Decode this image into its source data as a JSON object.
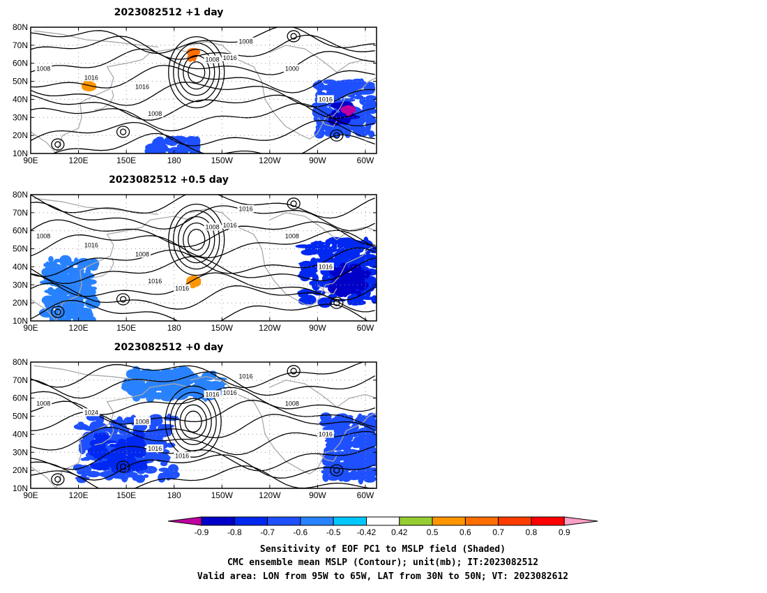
{
  "chart_data": [
    {
      "type": "heatmap",
      "title": "2023082512 +1 day",
      "xlabels": [
        "90E",
        "120E",
        "150E",
        "180",
        "150W",
        "120W",
        "90W",
        "60W"
      ],
      "ylabels": [
        "10N",
        "20N",
        "30N",
        "40N",
        "50N",
        "60N",
        "70N",
        "80N"
      ],
      "xlim_lon_east": [
        90,
        307
      ],
      "ylim_lat": [
        10,
        80
      ],
      "contour_labels": [
        "1016",
        "1016",
        "1008",
        "1000",
        "1008",
        "1016",
        "1008",
        "1016",
        "1008"
      ],
      "shaded_regions": [
        {
          "lon": [
            270,
            305
          ],
          "lat": [
            20,
            50
          ],
          "value": -0.6
        },
        {
          "lon": [
            280,
            292
          ],
          "lat": [
            28,
            38
          ],
          "value": -0.8
        },
        {
          "lon": [
            288,
            291
          ],
          "lat": [
            32,
            35
          ],
          "value": -0.9
        },
        {
          "lon": [
            165,
            195
          ],
          "lat": [
            10,
            18
          ],
          "value": -0.6
        },
        {
          "lon": [
            190,
            193
          ],
          "lat": [
            63,
            67
          ],
          "value": 0.6
        },
        {
          "lon": [
            125,
            128
          ],
          "lat": [
            46,
            50
          ],
          "value": 0.5
        }
      ]
    },
    {
      "type": "heatmap",
      "title": "2023082512 +0.5 day",
      "xlabels": [
        "90E",
        "120E",
        "150E",
        "180",
        "150W",
        "120W",
        "90W",
        "60W"
      ],
      "ylabels": [
        "10N",
        "20N",
        "30N",
        "40N",
        "50N",
        "60N",
        "70N",
        "80N"
      ],
      "xlim_lon_east": [
        90,
        307
      ],
      "ylim_lat": [
        10,
        80
      ],
      "contour_labels": [
        "1008",
        "1016",
        "1016",
        "1008",
        "1016",
        "1016",
        "1008",
        "1016",
        "1008",
        "1016"
      ],
      "shaded_regions": [
        {
          "lon": [
            260,
            307
          ],
          "lat": [
            20,
            55
          ],
          "value": -0.7
        },
        {
          "lon": [
            280,
            300
          ],
          "lat": [
            25,
            40
          ],
          "value": -0.8
        },
        {
          "lon": [
            100,
            130
          ],
          "lat": [
            10,
            45
          ],
          "value": -0.5
        },
        {
          "lon": [
            190,
            193
          ],
          "lat": [
            30,
            34
          ],
          "value": 0.5
        }
      ]
    },
    {
      "type": "heatmap",
      "title": "2023082512 +0 day",
      "xlabels": [
        "90E",
        "120E",
        "150E",
        "180",
        "150W",
        "120W",
        "90W",
        "60W"
      ],
      "ylabels": [
        "10N",
        "20N",
        "30N",
        "40N",
        "50N",
        "60N",
        "70N",
        "80N"
      ],
      "xlim_lon_east": [
        90,
        307
      ],
      "ylim_lat": [
        10,
        80
      ],
      "contour_labels": [
        "1008",
        "1016",
        "1016",
        "1008",
        "1016",
        "1016",
        "1016",
        "1024",
        "1008",
        "1016"
      ],
      "shaded_regions": [
        {
          "lon": [
            120,
            180
          ],
          "lat": [
            15,
            50
          ],
          "value": -0.6
        },
        {
          "lon": [
            130,
            160
          ],
          "lat": [
            20,
            40
          ],
          "value": -0.7
        },
        {
          "lon": [
            275,
            307
          ],
          "lat": [
            15,
            50
          ],
          "value": -0.6
        },
        {
          "lon": [
            150,
            210
          ],
          "lat": [
            60,
            75
          ],
          "value": -0.5
        }
      ]
    }
  ],
  "colorbar": {
    "labels": [
      "-0.9",
      "-0.8",
      "-0.7",
      "-0.6",
      "-0.5",
      "-0.42",
      "0.42",
      "0.5",
      "0.6",
      "0.7",
      "0.8",
      "0.9"
    ],
    "colors": [
      "#c000a0",
      "#0000c8",
      "#0028f0",
      "#1e50ff",
      "#2882ff",
      "#00c8ff",
      "#ffffff",
      "#96cd32",
      "#ff9600",
      "#ff6e00",
      "#ff3c00",
      "#ff0000",
      "#ffa0c8"
    ]
  },
  "caption": {
    "line1": "Sensitivity of EOF PC1 to MSLP field (Shaded)",
    "line2": "CMC ensemble mean MSLP (Contour); unit(mb); IT:2023082512",
    "line3": "Valid area: LON from 95W to 65W, LAT from 30N to 50N; VT: 2023082612"
  }
}
